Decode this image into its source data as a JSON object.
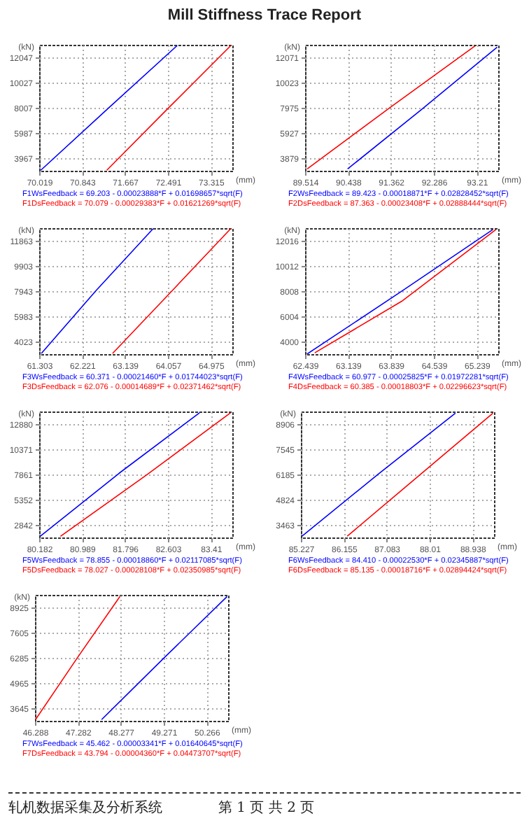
{
  "chart_data": [
    {
      "type": "line",
      "title": "Mill Stiffness Trace Report",
      "xlabel": "(mm)",
      "ylabel": "(kN)",
      "xlim": [
        70.019,
        73.727
      ],
      "ylim": [
        2957,
        13057
      ],
      "xticks": [
        70.019,
        70.843,
        71.667,
        72.491,
        73.315
      ],
      "yticks": [
        3967,
        5987,
        8007,
        10027,
        12047
      ],
      "grid": true,
      "series": [
        {
          "color": "#0000ff",
          "x": [
            70.05,
            71.354,
            72.67
          ],
          "values": [
            3000,
            8000,
            13000
          ]
        },
        {
          "color": "#ff0000",
          "x": [
            71.317,
            72.503,
            73.7
          ],
          "values": [
            3000,
            8000,
            13000
          ]
        }
      ],
      "annotations": [
        "F1WsFeedback = 69.203 - 0.00023888*F + 0.01698657*sqrt(F)",
        "F1DsFeedback = 70.079 - 0.00029383*F + 0.01621269*sqrt(F)"
      ]
    },
    {
      "type": "line",
      "xlabel": "(mm)",
      "ylabel": "(kN)",
      "xlim": [
        89.514,
        93.672
      ],
      "ylim": [
        2855,
        13095
      ],
      "xticks": [
        89.514,
        90.438,
        91.362,
        92.286,
        93.21
      ],
      "yticks": [
        3879,
        5927,
        7975,
        10023,
        12071
      ],
      "grid": true,
      "series": [
        {
          "color": "#0000ff",
          "x": [
            90.429,
            92.009,
            93.65
          ],
          "values": [
            3000,
            7800,
            12900
          ]
        },
        {
          "color": "#ff0000",
          "x": [
            89.56,
            91.344,
            93.173
          ],
          "values": [
            3000,
            8000,
            13000
          ]
        }
      ],
      "annotations": [
        "F2WsFeedback = 89.423 - 0.00018871*F + 0.02828452*sqrt(F)",
        "F2DsFeedback = 87.363 - 0.00023408*F + 0.02888444*sqrt(F)"
      ]
    },
    {
      "type": "line",
      "xlabel": "(mm)",
      "ylabel": "(kN)",
      "xlim": [
        61.303,
        65.434
      ],
      "ylim": [
        3043,
        12843
      ],
      "xticks": [
        61.303,
        62.221,
        63.139,
        64.057,
        64.975
      ],
      "yticks": [
        4023,
        5983,
        7943,
        9903,
        11863
      ],
      "grid": true,
      "series": [
        {
          "color": "#0000ff",
          "x": [
            61.35,
            62.522,
            63.74
          ],
          "values": [
            3100,
            8000,
            12800
          ]
        },
        {
          "color": "#ff0000",
          "x": [
            62.873,
            64.153,
            65.4
          ],
          "values": [
            3100,
            8000,
            12800
          ]
        }
      ],
      "annotations": [
        "F3WsFeedback = 60.371 - 0.00021460*F + 0.01744023*sqrt(F)",
        "F3DsFeedback = 62.076 - 0.00014689*F + 0.02371462*sqrt(F)"
      ]
    },
    {
      "type": "line",
      "xlabel": "(mm)",
      "ylabel": "(kN)",
      "xlim": [
        62.439,
        65.589
      ],
      "ylim": [
        2998,
        13018
      ],
      "xticks": [
        62.439,
        63.139,
        63.839,
        64.539,
        65.239
      ],
      "yticks": [
        4000,
        6004,
        8008,
        10012,
        12016
      ],
      "grid": true,
      "series": [
        {
          "color": "#0000ff",
          "x": [
            62.47,
            64.014,
            65.5
          ],
          "values": [
            3000,
            8000,
            12900
          ]
        },
        {
          "color": "#ff0000",
          "x": [
            62.597,
            64.014,
            65.55
          ],
          "values": [
            3100,
            7200,
            12900
          ]
        }
      ],
      "annotations": [
        "F4WsFeedback = 60.977 - 0.00025825*F + 0.01972281*sqrt(F)",
        "F4DsFeedback = 60.385 - 0.00018803*F + 0.02296623*sqrt(F)"
      ]
    },
    {
      "type": "line",
      "xlabel": "(mm)",
      "ylabel": "(kN)",
      "xlim": [
        80.182,
        83.814
      ],
      "ylim": [
        1587,
        14135
      ],
      "xticks": [
        80.182,
        80.989,
        81.796,
        82.603,
        83.41
      ],
      "yticks": [
        2842,
        5352,
        7861,
        10371,
        12880
      ],
      "grid": true,
      "series": [
        {
          "color": "#0000ff",
          "x": [
            80.2,
            81.689,
            83.197
          ],
          "values": [
            1700,
            8000,
            14000
          ]
        },
        {
          "color": "#ff0000",
          "x": [
            80.582,
            82.198,
            83.78
          ],
          "values": [
            1700,
            7800,
            14000
          ]
        }
      ],
      "annotations": [
        "F5WsFeedback = 78.855 - 0.00018860*F + 0.02117085*sqrt(F)",
        "F5DsFeedback = 78.027 - 0.00028108*F + 0.02350985*sqrt(F)"
      ]
    },
    {
      "type": "line",
      "xlabel": "(mm)",
      "ylabel": "(kN)",
      "xlim": [
        85.227,
        89.403
      ],
      "ylim": [
        2783,
        9587
      ],
      "xticks": [
        85.227,
        86.155,
        87.083,
        88.01,
        88.938
      ],
      "yticks": [
        3463,
        4824,
        6185,
        7545,
        8906
      ],
      "grid": true,
      "series": [
        {
          "color": "#0000ff",
          "x": [
            85.25,
            86.897,
            88.568
          ],
          "values": [
            2850,
            6200,
            9500
          ]
        },
        {
          "color": "#ff0000",
          "x": [
            86.229,
            87.816,
            89.38
          ],
          "values": [
            2850,
            6200,
            9500
          ]
        }
      ],
      "annotations": [
        "F6WsFeedback = 84.410 - 0.00022530*F + 0.02345887*sqrt(F)",
        "F6DsFeedback = 85.135 - 0.00018716*F + 0.02894424*sqrt(F)"
      ]
    },
    {
      "type": "line",
      "xlabel": "(mm)",
      "ylabel": "(kN)",
      "xlim": [
        46.288,
        50.763
      ],
      "ylim": [
        2985,
        9585
      ],
      "xticks": [
        46.288,
        47.282,
        48.277,
        49.271,
        50.266
      ],
      "yticks": [
        3645,
        4965,
        6285,
        7605,
        8925
      ],
      "grid": true,
      "series": [
        {
          "color": "#0000ff",
          "x": [
            47.832,
            49.286,
            50.74
          ],
          "values": [
            3050,
            6300,
            9500
          ]
        },
        {
          "color": "#ff0000",
          "x": [
            46.3,
            47.273,
            48.257
          ],
          "values": [
            3050,
            6300,
            9500
          ]
        }
      ],
      "annotations": [
        "F7WsFeedback = 45.462 - 0.00003341*F + 0.01640645*sqrt(F)",
        "F7DsFeedback = 43.794 - 0.00004360*F + 0.04473707*sqrt(F)",
        "轧机数据采集及分析系统",
        "第 1 页 共 2 页"
      ]
    }
  ]
}
